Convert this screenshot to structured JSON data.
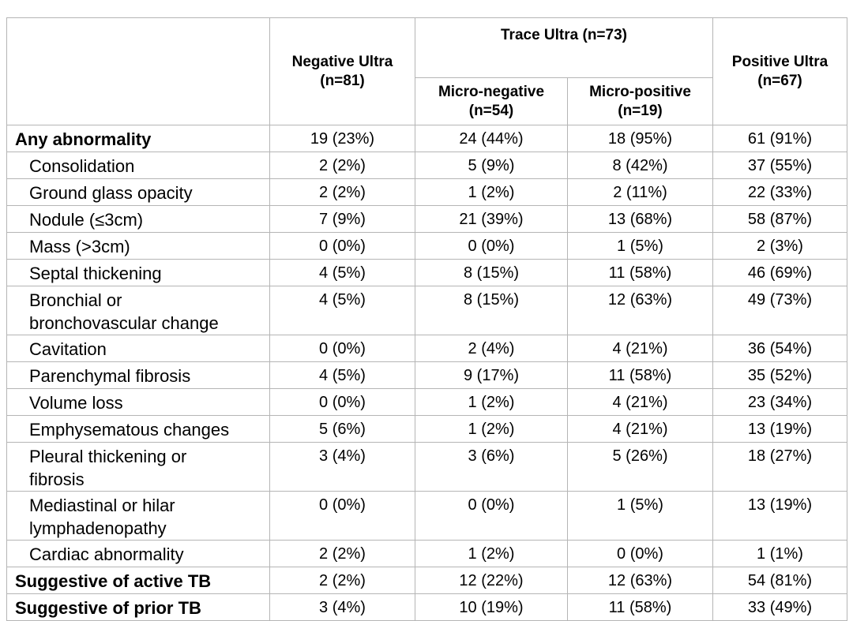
{
  "header": {
    "negative": [
      "Negative Ultra",
      "(n=81)"
    ],
    "trace": "Trace Ultra (n=73)",
    "micro_negative": [
      "Micro-negative",
      "(n=54)"
    ],
    "micro_positive": [
      "Micro-positive",
      "(n=19)"
    ],
    "positive": [
      "Positive Ultra",
      "(n=67)"
    ]
  },
  "table": {
    "rows": [
      {
        "label": [
          "Any abnormality"
        ],
        "cells": [
          "19 (23%)",
          "24 (44%)",
          "18 (95%)",
          "61 (91%)"
        ]
      },
      {
        "label": [
          "Consolidation"
        ],
        "cells": [
          "2 (2%)",
          "5 (9%)",
          "8 (42%)",
          "37 (55%)"
        ]
      },
      {
        "label": [
          "Ground glass opacity"
        ],
        "cells": [
          "2 (2%)",
          "1 (2%)",
          "2 (11%)",
          "22 (33%)"
        ]
      },
      {
        "label": [
          "Nodule (≤3cm)"
        ],
        "cells": [
          "7 (9%)",
          "21 (39%)",
          "13 (68%)",
          "58 (87%)"
        ]
      },
      {
        "label": [
          "Mass (>3cm)"
        ],
        "cells": [
          "0 (0%)",
          "0 (0%)",
          "1 (5%)",
          "2 (3%)"
        ]
      },
      {
        "label": [
          "Septal thickening"
        ],
        "cells": [
          "4 (5%)",
          "8 (15%)",
          "11 (58%)",
          "46 (69%)"
        ]
      },
      {
        "label": [
          "Bronchial or",
          "bronchovascular change"
        ],
        "cells": [
          "4 (5%)",
          "8 (15%)",
          "12 (63%)",
          "49 (73%)"
        ]
      },
      {
        "label": [
          "Cavitation"
        ],
        "cells": [
          "0 (0%)",
          "2 (4%)",
          "4 (21%)",
          "36 (54%)"
        ]
      },
      {
        "label": [
          "Parenchymal fibrosis"
        ],
        "cells": [
          "4 (5%)",
          "9 (17%)",
          "11 (58%)",
          "35 (52%)"
        ]
      },
      {
        "label": [
          "Volume loss"
        ],
        "cells": [
          "0 (0%)",
          "1 (2%)",
          "4 (21%)",
          "23 (34%)"
        ]
      },
      {
        "label": [
          "Emphysematous changes"
        ],
        "cells": [
          "5 (6%)",
          "1 (2%)",
          "4 (21%)",
          "13 (19%)"
        ]
      },
      {
        "label": [
          "Pleural thickening or",
          "fibrosis"
        ],
        "cells": [
          "3 (4%)",
          "3 (6%)",
          "5 (26%)",
          "18 (27%)"
        ]
      },
      {
        "label": [
          "Mediastinal or hilar",
          "lymphadenopathy"
        ],
        "cells": [
          "0 (0%)",
          "0 (0%)",
          "1 (5%)",
          "13 (19%)"
        ]
      },
      {
        "label": [
          "Cardiac abnormality"
        ],
        "cells": [
          "2 (2%)",
          "1 (2%)",
          "0 (0%)",
          "1 (1%)"
        ]
      },
      {
        "label": [
          "Suggestive of active TB"
        ],
        "cells": [
          "2 (2%)",
          "12 (22%)",
          "12 (63%)",
          "54 (81%)"
        ]
      },
      {
        "label": [
          "Suggestive of prior TB"
        ],
        "cells": [
          "3 (4%)",
          "10 (19%)",
          "11 (58%)",
          "33 (49%)"
        ]
      }
    ]
  }
}
